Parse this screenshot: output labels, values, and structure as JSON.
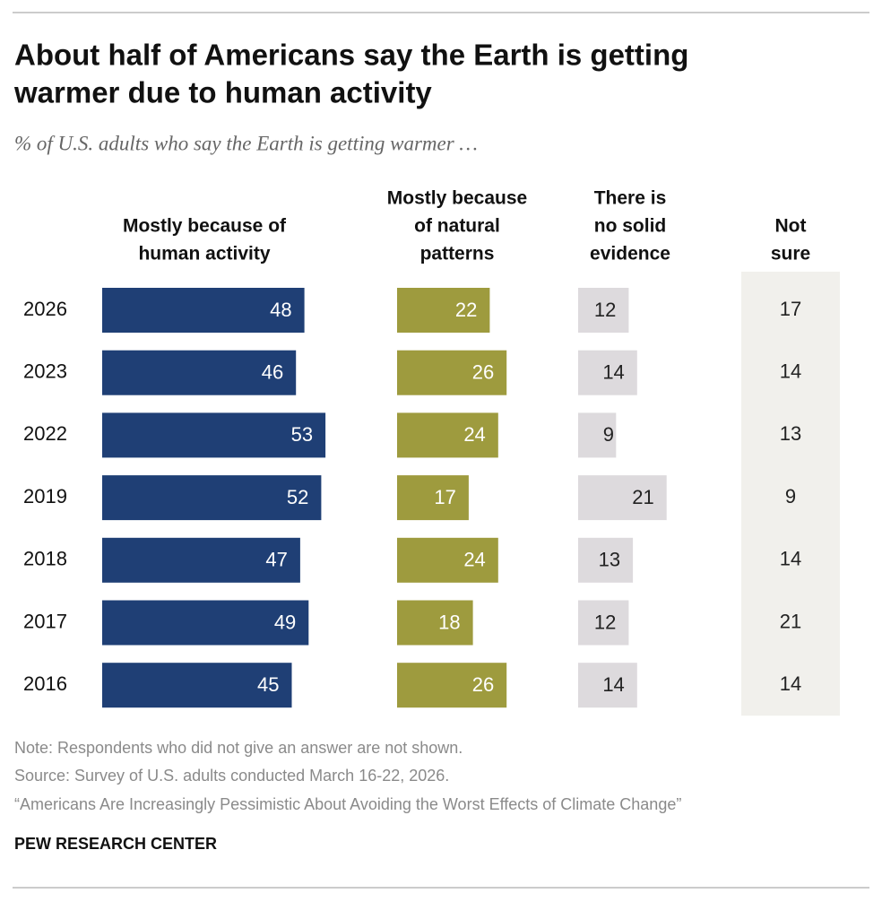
{
  "chart_data": {
    "type": "bar",
    "orientation": "horizontal",
    "title": [
      "About half of Americans say the Earth is getting",
      "warmer due to human activity"
    ],
    "subtitle": "% of U.S. adults who say the Earth is getting warmer …",
    "categories": [
      "2026",
      "2023",
      "2022",
      "2019",
      "2018",
      "2017",
      "2016"
    ],
    "series": [
      {
        "name": [
          "Mostly because of",
          "human activity"
        ],
        "color": "#1f3f75",
        "label_color": "#ffffff",
        "mark": "bar",
        "values": [
          48,
          46,
          53,
          52,
          47,
          49,
          45
        ]
      },
      {
        "name": [
          "Mostly because",
          "of natural",
          "patterns"
        ],
        "color": "#9e9b3e",
        "label_color": "#ffffff",
        "mark": "bar",
        "values": [
          22,
          26,
          24,
          17,
          24,
          18,
          26
        ]
      },
      {
        "name": [
          "There is",
          "no solid",
          "evidence"
        ],
        "color": "#dddadd",
        "label_color": "#222222",
        "mark": "bar",
        "values": [
          12,
          14,
          9,
          21,
          13,
          12,
          14
        ]
      },
      {
        "name": [
          "Not",
          "sure"
        ],
        "color": "#f1f0ec",
        "label_color": "#222222",
        "mark": "text",
        "values": [
          17,
          14,
          13,
          9,
          14,
          21,
          14
        ]
      }
    ],
    "notes": [
      "Note: Respondents who did not give an answer are not shown.",
      "Source: Survey of U.S. adults conducted March 16-22, 2026.",
      "“Americans Are Increasingly Pessimistic About Avoiding the Worst Effects of Climate Change”"
    ],
    "brand": "PEW RESEARCH CENTER"
  }
}
